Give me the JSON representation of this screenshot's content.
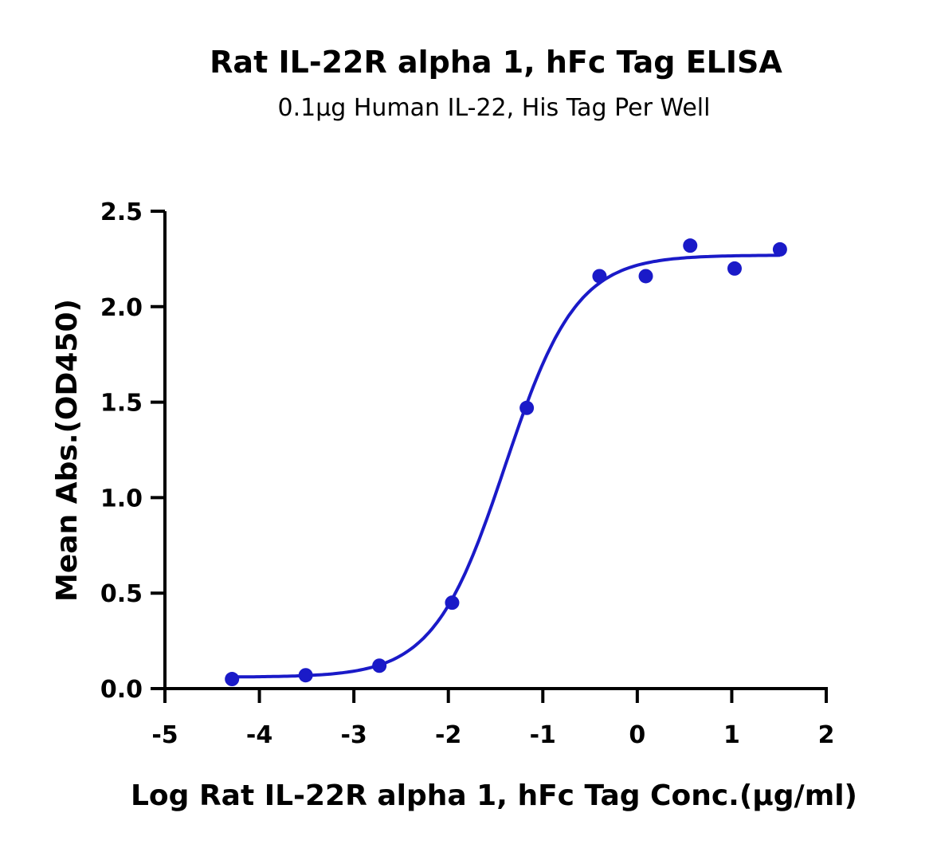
{
  "chart_data": {
    "type": "scatter",
    "title": "Rat IL-22R alpha 1, hFc Tag ELISA",
    "subtitle": "0.1µg Human IL-22, His Tag Per Well",
    "xlabel": "Log Rat IL-22R alpha 1, hFc Tag Conc.(µg/ml)",
    "ylabel": "Mean Abs.(OD450)",
    "xlim": [
      -5,
      2
    ],
    "ylim": [
      0,
      2.5
    ],
    "xticks": [
      "-5",
      "-4",
      "-3",
      "-2",
      "-1",
      "0",
      "1",
      "2"
    ],
    "yticks": [
      "0.0",
      "0.5",
      "1.0",
      "1.5",
      "2.0",
      "2.5"
    ],
    "grid": false,
    "color": "#1a1ac8",
    "points": [
      {
        "x": -4.29,
        "y": 0.05
      },
      {
        "x": -3.51,
        "y": 0.07
      },
      {
        "x": -2.73,
        "y": 0.12
      },
      {
        "x": -1.96,
        "y": 0.45
      },
      {
        "x": -1.17,
        "y": 1.47
      },
      {
        "x": -0.4,
        "y": 2.16
      },
      {
        "x": 0.09,
        "y": 2.16
      },
      {
        "x": 0.56,
        "y": 2.32
      },
      {
        "x": 1.03,
        "y": 2.2
      },
      {
        "x": 1.51,
        "y": 2.3
      }
    ],
    "fit": {
      "model": "4PL",
      "bottom": 0.06,
      "top": 2.27,
      "logEC50": -1.4,
      "hill": 1.15,
      "x_range": [
        -4.29,
        1.51
      ]
    }
  }
}
